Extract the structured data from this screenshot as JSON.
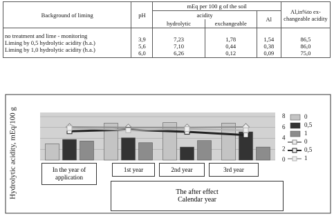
{
  "table": {
    "header": {
      "background": "Background of liming",
      "ph": "pH",
      "group": "mEq per 100 g of the soil",
      "acidity": "acidity",
      "hydrolytic": "hydrolytic",
      "exchangeable": "exchangeable",
      "al": "Al",
      "al_percent": "Al,in%to ex-changeable acidity"
    },
    "row_labels": [
      "no treatment and lime - monitoring",
      "Liming by 0,5 hydrolytic acidity (h.a.)",
      "Liming by 1,0 hydrolytic acidity (h.a.)"
    ],
    "columns": [
      [
        "3,9",
        "5,6",
        "6,0"
      ],
      [
        "7,23",
        "7,10",
        "6,26"
      ],
      [
        "1,78",
        "0,44",
        "0,12"
      ],
      [
        "1,54",
        "0,38",
        "0,09"
      ],
      [
        "86,5",
        "86,0",
        "75,0"
      ]
    ]
  },
  "chart_data": {
    "type": "bar",
    "ylabel": "Hydrolytic acidity, mEq/100 g",
    "categories": [
      "In the year of application",
      "1st year",
      "2nd year",
      "3rd year"
    ],
    "footer": [
      "The after effect",
      "Calendar year"
    ],
    "ylim": [
      0,
      8
    ],
    "yticks": [
      0,
      2,
      4,
      6,
      8
    ],
    "grid": true,
    "series": [
      {
        "name": "0",
        "color": "#c4c4c4",
        "values": [
          3.0,
          6.8,
          6.9,
          6.8
        ]
      },
      {
        "name": "0,5",
        "color": "#333333",
        "values": [
          3.8,
          4.1,
          2.4,
          5.2
        ]
      },
      {
        "name": "1",
        "color": "#8c8c8c",
        "values": [
          3.5,
          3.2,
          3.6,
          2.4
        ]
      }
    ],
    "lines": [
      {
        "name": "0",
        "color": "#8a8a8a",
        "values": [
          6.1,
          6.0,
          6.0,
          6.1
        ]
      },
      {
        "name": "0,5",
        "color": "#222222",
        "values": [
          5.3,
          5.6,
          5.2,
          4.6
        ]
      },
      {
        "name": "1",
        "color": "#b0b0b0",
        "values": [
          5.9,
          5.5,
          5.7,
          5.5
        ]
      }
    ]
  }
}
